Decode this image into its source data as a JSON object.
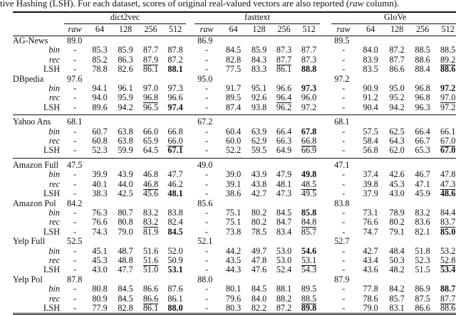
{
  "caption": {
    "before": "tive Hashing (LSH). For each dataset, scores of original real-valued vectors are also reported (",
    "italic": "raw",
    "after": " column)."
  },
  "embeddings": [
    "dict2vec",
    "fasttext",
    "GloVe"
  ],
  "subheaders": [
    "raw",
    "64",
    "128",
    "256",
    "512"
  ],
  "raw_placeholder": "-",
  "sections": [
    [
      {
        "name": "AG-News",
        "raw": [
          "89.0",
          "86.9",
          "89.5"
        ],
        "rows": [
          {
            "method": "bin",
            "values": [
              "85.3",
              "85.9",
              "87.7",
              "87.8",
              "84.5",
              "85.9",
              "87.3",
              "87.7",
              "84.0",
              "87.2",
              "88.5",
              "88.5"
            ],
            "bold": [],
            "underline": []
          },
          {
            "method": "rec",
            "values": [
              "85.2",
              "86.3",
              "87.9",
              "87.2",
              "82.8",
              "84.3",
              "87.7",
              "87.3",
              "83.9",
              "87.7",
              "88.6",
              "89.2"
            ],
            "bold": [],
            "underline": [
              2,
              6,
              11
            ]
          },
          {
            "method": "LSH",
            "values": [
              "78.8",
              "82.6",
              "86.1",
              "88.1",
              "77.5",
              "83.3",
              "86.1",
              "88.8",
              "83.5",
              "86.6",
              "88.4",
              "88.6"
            ],
            "bold": [
              3,
              7,
              11
            ],
            "underline": []
          }
        ]
      },
      {
        "name": "DBpedia",
        "raw": [
          "97.6",
          "95.0",
          "97.2"
        ],
        "rows": [
          {
            "method": "bin",
            "values": [
              "94.1",
              "96.1",
              "97.0",
              "97.3",
              "91.7",
              "95.1",
              "96.6",
              "97.3",
              "90.9",
              "95.0",
              "96.8",
              "97.2"
            ],
            "bold": [
              7,
              11
            ],
            "underline": []
          },
          {
            "method": "rec",
            "values": [
              "94.0",
              "95.9",
              "96.8",
              "96.6",
              "89.5",
              "92.6",
              "96.4",
              "96.0",
              "91.2",
              "95.2",
              "96.8",
              "97.0"
            ],
            "bold": [],
            "underline": [
              2,
              6,
              11
            ]
          },
          {
            "method": "LSH",
            "values": [
              "89.6",
              "94.2",
              "96.5",
              "97.4",
              "87.4",
              "93.8",
              "96.2",
              "97.2",
              "90.4",
              "94.2",
              "96.3",
              "97.2"
            ],
            "bold": [
              3
            ],
            "underline": []
          }
        ]
      }
    ],
    [
      {
        "name": "Yahoo Ans",
        "raw": [
          "68.1",
          "67.2",
          "68.1"
        ],
        "rows": [
          {
            "method": "bin",
            "values": [
              "60.7",
              "63.8",
              "66.0",
              "66.8",
              "60.4",
              "63.9",
              "66.4",
              "67.8",
              "57.5",
              "62.5",
              "66.4",
              "66.1"
            ],
            "bold": [
              7
            ],
            "underline": []
          },
          {
            "method": "rec",
            "values": [
              "60.8",
              "63.8",
              "65.9",
              "66.0",
              "60.0",
              "62.9",
              "66.3",
              "66.8",
              "58.4",
              "64.3",
              "66.7",
              "67.0"
            ],
            "bold": [],
            "underline": [
              3,
              7,
              11
            ]
          },
          {
            "method": "LSH",
            "values": [
              "52.3",
              "59.9",
              "64.5",
              "67.1",
              "52.2",
              "59.5",
              "64.9",
              "66.9",
              "56.8",
              "62.0",
              "65.3",
              "67.0"
            ],
            "bold": [
              3,
              11
            ],
            "underline": []
          }
        ]
      }
    ],
    [
      {
        "name": "Amazon Full",
        "raw": [
          "47.5",
          "49.0",
          "47.1"
        ],
        "rows": [
          {
            "method": "bin",
            "values": [
              "39.9",
              "43.9",
              "46.8",
              "47.7",
              "39.0",
              "43.9",
              "47.9",
              "49.8",
              "37.4",
              "42.6",
              "46.7",
              "47.8"
            ],
            "bold": [
              7
            ],
            "underline": []
          },
          {
            "method": "rec",
            "values": [
              "40.1",
              "44.0",
              "46.8",
              "46.2",
              "39.1",
              "43.8",
              "48.1",
              "48.5",
              "39.8",
              "45.3",
              "47.1",
              "47.3"
            ],
            "bold": [],
            "underline": [
              2,
              7,
              11
            ]
          },
          {
            "method": "LSH",
            "values": [
              "38.3",
              "42.5",
              "45.6",
              "48.1",
              "38.6",
              "42.7",
              "47.3",
              "49.5",
              "37.9",
              "43.0",
              "45.9",
              "48.6"
            ],
            "bold": [
              3,
              11
            ],
            "underline": []
          }
        ]
      },
      {
        "name": "Amazon Pol",
        "raw": [
          "84.2",
          "85.6",
          "83.8"
        ],
        "rows": [
          {
            "method": "bin",
            "values": [
              "76.3",
              "80.7",
              "83.2",
              "83.8",
              "75.1",
              "80.2",
              "84.5",
              "85.8",
              "73.1",
              "78.9",
              "83.2",
              "84.4"
            ],
            "bold": [
              7
            ],
            "underline": []
          },
          {
            "method": "rec",
            "values": [
              "76.6",
              "80.8",
              "83.2",
              "82.4",
              "75.1",
              "80.2",
              "84.7",
              "84.8",
              "76.6",
              "80.2",
              "83.6",
              "83.7"
            ],
            "bold": [],
            "underline": [
              2,
              7,
              11
            ]
          },
          {
            "method": "LSH",
            "values": [
              "74.3",
              "79.0",
              "81.9",
              "84.5",
              "73.8",
              "78.5",
              "83.4",
              "85.7",
              "74.7",
              "79.1",
              "82.1",
              "85.0"
            ],
            "bold": [
              3,
              11
            ],
            "underline": []
          }
        ]
      },
      {
        "name": "Yelp Full",
        "raw": [
          "52.5",
          "52.1",
          "52.7"
        ],
        "rows": [
          {
            "method": "bin",
            "values": [
              "45.1",
              "48.7",
              "51.6",
              "52.0",
              "44.2",
              "49.7",
              "53.0",
              "54.6",
              "42.7",
              "48.4",
              "51.8",
              "53.2"
            ],
            "bold": [
              7
            ],
            "underline": []
          },
          {
            "method": "rec",
            "values": [
              "45.3",
              "48.8",
              "51.6",
              "50.9",
              "43.5",
              "47.8",
              "53.0",
              "53.1",
              "43.4",
              "50.3",
              "52.3",
              "52.8"
            ],
            "bold": [],
            "underline": [
              2,
              7,
              11
            ]
          },
          {
            "method": "LSH",
            "values": [
              "43.0",
              "47.7",
              "51.0",
              "53.1",
              "44.3",
              "47.6",
              "52.4",
              "54.3",
              "43.6",
              "48.2",
              "51.5",
              "53.4"
            ],
            "bold": [
              3,
              11
            ],
            "underline": []
          }
        ]
      },
      {
        "name": "Yelp Pol",
        "raw": [
          "87.8",
          "88.0",
          "87.9"
        ],
        "rows": [
          {
            "method": "bin",
            "values": [
              "80.8",
              "84.5",
              "86.6",
              "87.6",
              "80.1",
              "84.5",
              "88.1",
              "89.5",
              "77.8",
              "84.2",
              "86.9",
              "88.7"
            ],
            "bold": [
              11
            ],
            "underline": []
          },
          {
            "method": "rec",
            "values": [
              "80.9",
              "84.5",
              "86.6",
              "86.1",
              "79.6",
              "84.0",
              "88.2",
              "88.5",
              "78.6",
              "85.7",
              "87.5",
              "87.7"
            ],
            "bold": [],
            "underline": [
              2,
              7,
              11
            ]
          },
          {
            "method": "LSH",
            "values": [
              "77.9",
              "82.8",
              "86.1",
              "88.0",
              "80.3",
              "82.2",
              "87.2",
              "89.8",
              "79.0",
              "83.1",
              "86.6",
              "88.6"
            ],
            "bold": [
              3,
              7
            ],
            "underline": []
          }
        ]
      }
    ]
  ]
}
